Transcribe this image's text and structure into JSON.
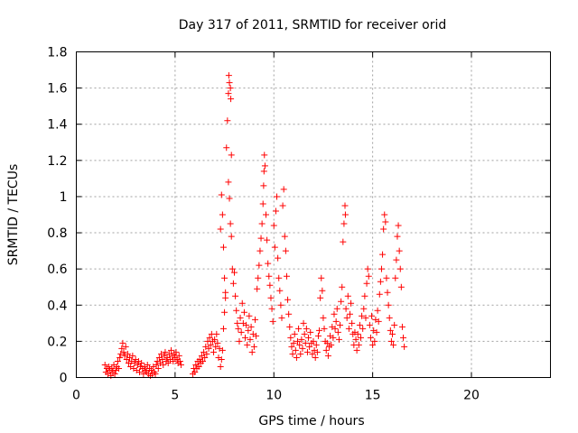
{
  "chart_data": {
    "type": "scatter",
    "title": "Day 317 of 2011, SRMTID for receiver orid",
    "xlabel": "GPS time / hours",
    "ylabel": "SRMTID / TECUs",
    "xlim": [
      0,
      24
    ],
    "ylim": [
      0,
      1.8
    ],
    "xticks": [
      0,
      5,
      10,
      15,
      20
    ],
    "xtick_labels": [
      "0",
      "5",
      "10",
      "15",
      "20"
    ],
    "yticks": [
      0,
      0.2,
      0.4,
      0.6,
      0.8,
      1,
      1.2,
      1.4,
      1.6,
      1.8
    ],
    "ytick_labels": [
      "0",
      "0.2",
      "0.4",
      "0.6",
      "0.8",
      "1",
      "1.2",
      "1.4",
      "1.6",
      "1.8"
    ],
    "grid": true,
    "marker": "plus",
    "color": "#ff0000",
    "series": [
      {
        "points": [
          [
            1.45,
            0.07
          ],
          [
            1.5,
            0.03
          ],
          [
            1.55,
            0.05
          ],
          [
            1.6,
            0.02
          ],
          [
            1.65,
            0.06
          ],
          [
            1.7,
            0.04
          ],
          [
            1.75,
            0.01
          ],
          [
            1.8,
            0.05
          ],
          [
            1.85,
            0.03
          ],
          [
            1.9,
            0.07
          ],
          [
            1.95,
            0.02
          ],
          [
            2.0,
            0.04
          ],
          [
            2.05,
            0.06
          ],
          [
            2.1,
            0.09
          ],
          [
            2.15,
            0.05
          ],
          [
            2.2,
            0.11
          ],
          [
            2.25,
            0.13
          ],
          [
            2.3,
            0.16
          ],
          [
            2.35,
            0.19
          ],
          [
            2.4,
            0.14
          ],
          [
            2.45,
            0.12
          ],
          [
            2.5,
            0.17
          ],
          [
            2.55,
            0.1
          ],
          [
            2.6,
            0.13
          ],
          [
            2.65,
            0.08
          ],
          [
            2.7,
            0.11
          ],
          [
            2.75,
            0.06
          ],
          [
            2.8,
            0.09
          ],
          [
            2.85,
            0.12
          ],
          [
            2.9,
            0.05
          ],
          [
            2.95,
            0.08
          ],
          [
            3.0,
            0.1
          ],
          [
            3.05,
            0.04
          ],
          [
            3.1,
            0.07
          ],
          [
            3.15,
            0.09
          ],
          [
            3.2,
            0.03
          ],
          [
            3.25,
            0.06
          ],
          [
            3.3,
            0.08
          ],
          [
            3.35,
            0.05
          ],
          [
            3.4,
            0.02
          ],
          [
            3.45,
            0.06
          ],
          [
            3.5,
            0.04
          ],
          [
            3.55,
            0.03
          ],
          [
            3.6,
            0.07
          ],
          [
            3.65,
            0.02
          ],
          [
            3.7,
            0.05
          ],
          [
            3.75,
            0.01
          ],
          [
            3.8,
            0.04
          ],
          [
            3.85,
            0.02
          ],
          [
            3.9,
            0.06
          ],
          [
            3.95,
            0.03
          ],
          [
            4.0,
            0.02
          ],
          [
            4.05,
            0.07
          ],
          [
            4.1,
            0.09
          ],
          [
            4.15,
            0.05
          ],
          [
            4.2,
            0.11
          ],
          [
            4.25,
            0.08
          ],
          [
            4.3,
            0.13
          ],
          [
            4.35,
            0.1
          ],
          [
            4.4,
            0.07
          ],
          [
            4.45,
            0.12
          ],
          [
            4.5,
            0.14
          ],
          [
            4.55,
            0.09
          ],
          [
            4.6,
            0.11
          ],
          [
            4.65,
            0.08
          ],
          [
            4.7,
            0.13
          ],
          [
            4.75,
            0.1
          ],
          [
            4.8,
            0.15
          ],
          [
            4.85,
            0.12
          ],
          [
            4.9,
            0.09
          ],
          [
            4.95,
            0.13
          ],
          [
            5.0,
            0.11
          ],
          [
            5.05,
            0.14
          ],
          [
            5.1,
            0.1
          ],
          [
            5.15,
            0.08
          ],
          [
            5.2,
            0.12
          ],
          [
            5.25,
            0.09
          ],
          [
            5.3,
            0.07
          ],
          [
            5.9,
            0.02
          ],
          [
            5.95,
            0.05
          ],
          [
            6.0,
            0.03
          ],
          [
            6.05,
            0.07
          ],
          [
            6.1,
            0.05
          ],
          [
            6.15,
            0.09
          ],
          [
            6.2,
            0.06
          ],
          [
            6.25,
            0.1
          ],
          [
            6.3,
            0.08
          ],
          [
            6.35,
            0.12
          ],
          [
            6.4,
            0.09
          ],
          [
            6.45,
            0.14
          ],
          [
            6.5,
            0.11
          ],
          [
            6.55,
            0.17
          ],
          [
            6.6,
            0.13
          ],
          [
            6.65,
            0.2
          ],
          [
            6.7,
            0.16
          ],
          [
            6.75,
            0.22
          ],
          [
            6.8,
            0.18
          ],
          [
            6.85,
            0.24
          ],
          [
            6.9,
            0.2
          ],
          [
            6.95,
            0.14
          ],
          [
            7.0,
            0.21
          ],
          [
            7.05,
            0.17
          ],
          [
            7.1,
            0.24
          ],
          [
            7.15,
            0.19
          ],
          [
            7.2,
            0.11
          ],
          [
            7.25,
            0.16
          ],
          [
            7.3,
            0.06
          ],
          [
            7.35,
            0.1
          ],
          [
            7.4,
            0.15
          ],
          [
            7.45,
            0.27
          ],
          [
            7.5,
            0.36
          ],
          [
            7.55,
            0.47
          ],
          [
            7.3,
            0.82
          ],
          [
            7.35,
            1.01
          ],
          [
            7.4,
            0.9
          ],
          [
            7.45,
            0.72
          ],
          [
            7.5,
            0.55
          ],
          [
            7.55,
            0.44
          ],
          [
            7.6,
            1.27
          ],
          [
            7.65,
            1.42
          ],
          [
            7.7,
            1.57
          ],
          [
            7.72,
            1.67
          ],
          [
            7.75,
            1.63
          ],
          [
            7.8,
            1.6
          ],
          [
            7.82,
            1.54
          ],
          [
            7.85,
            1.23
          ],
          [
            7.7,
            1.08
          ],
          [
            7.75,
            0.99
          ],
          [
            7.8,
            0.85
          ],
          [
            7.85,
            0.78
          ],
          [
            7.9,
            0.6
          ],
          [
            7.95,
            0.52
          ],
          [
            8.0,
            0.58
          ],
          [
            8.05,
            0.45
          ],
          [
            8.1,
            0.37
          ],
          [
            8.15,
            0.3
          ],
          [
            8.2,
            0.27
          ],
          [
            8.25,
            0.2
          ],
          [
            8.3,
            0.33
          ],
          [
            8.35,
            0.25
          ],
          [
            8.4,
            0.41
          ],
          [
            8.45,
            0.3
          ],
          [
            8.5,
            0.36
          ],
          [
            8.55,
            0.22
          ],
          [
            8.6,
            0.29
          ],
          [
            8.65,
            0.18
          ],
          [
            8.7,
            0.26
          ],
          [
            8.75,
            0.34
          ],
          [
            8.8,
            0.21
          ],
          [
            8.85,
            0.28
          ],
          [
            8.9,
            0.14
          ],
          [
            8.95,
            0.24
          ],
          [
            9.0,
            0.17
          ],
          [
            9.05,
            0.32
          ],
          [
            9.1,
            0.23
          ],
          [
            9.15,
            0.49
          ],
          [
            9.2,
            0.55
          ],
          [
            9.25,
            0.62
          ],
          [
            9.3,
            0.7
          ],
          [
            9.35,
            0.77
          ],
          [
            9.4,
            0.85
          ],
          [
            9.45,
            0.96
          ],
          [
            9.48,
            1.06
          ],
          [
            9.5,
            1.14
          ],
          [
            9.52,
            1.23
          ],
          [
            9.55,
            1.17
          ],
          [
            9.6,
            0.9
          ],
          [
            9.65,
            0.76
          ],
          [
            9.7,
            0.63
          ],
          [
            9.75,
            0.56
          ],
          [
            9.8,
            0.51
          ],
          [
            9.85,
            0.44
          ],
          [
            9.9,
            0.38
          ],
          [
            9.95,
            0.31
          ],
          [
            10.0,
            0.84
          ],
          [
            10.05,
            0.72
          ],
          [
            10.1,
            0.92
          ],
          [
            10.15,
            1.0
          ],
          [
            10.2,
            0.66
          ],
          [
            10.25,
            0.55
          ],
          [
            10.3,
            0.48
          ],
          [
            10.35,
            0.4
          ],
          [
            10.4,
            0.33
          ],
          [
            10.45,
            0.95
          ],
          [
            10.5,
            1.04
          ],
          [
            10.55,
            0.78
          ],
          [
            10.6,
            0.7
          ],
          [
            10.65,
            0.56
          ],
          [
            10.7,
            0.43
          ],
          [
            10.75,
            0.35
          ],
          [
            10.8,
            0.28
          ],
          [
            10.85,
            0.22
          ],
          [
            10.9,
            0.17
          ],
          [
            10.95,
            0.13
          ],
          [
            11.0,
            0.19
          ],
          [
            11.05,
            0.24
          ],
          [
            11.1,
            0.15
          ],
          [
            11.15,
            0.11
          ],
          [
            11.2,
            0.2
          ],
          [
            11.25,
            0.27
          ],
          [
            11.3,
            0.18
          ],
          [
            11.35,
            0.13
          ],
          [
            11.4,
            0.21
          ],
          [
            11.45,
            0.16
          ],
          [
            11.5,
            0.3
          ],
          [
            11.55,
            0.24
          ],
          [
            11.6,
            0.19
          ],
          [
            11.65,
            0.27
          ],
          [
            11.7,
            0.14
          ],
          [
            11.75,
            0.22
          ],
          [
            11.8,
            0.17
          ],
          [
            11.85,
            0.25
          ],
          [
            11.9,
            0.19
          ],
          [
            11.95,
            0.13
          ],
          [
            12.0,
            0.2
          ],
          [
            12.05,
            0.15
          ],
          [
            12.1,
            0.11
          ],
          [
            12.15,
            0.18
          ],
          [
            12.2,
            0.14
          ],
          [
            12.25,
            0.23
          ],
          [
            12.3,
            0.26
          ],
          [
            12.35,
            0.44
          ],
          [
            12.4,
            0.55
          ],
          [
            12.45,
            0.48
          ],
          [
            12.5,
            0.33
          ],
          [
            12.55,
            0.27
          ],
          [
            12.6,
            0.2
          ],
          [
            12.65,
            0.15
          ],
          [
            12.7,
            0.19
          ],
          [
            12.75,
            0.12
          ],
          [
            12.8,
            0.17
          ],
          [
            12.85,
            0.23
          ],
          [
            12.9,
            0.18
          ],
          [
            12.95,
            0.28
          ],
          [
            13.0,
            0.22
          ],
          [
            13.05,
            0.35
          ],
          [
            13.1,
            0.27
          ],
          [
            13.15,
            0.31
          ],
          [
            13.2,
            0.38
          ],
          [
            13.25,
            0.25
          ],
          [
            13.3,
            0.21
          ],
          [
            13.35,
            0.29
          ],
          [
            13.4,
            0.42
          ],
          [
            13.45,
            0.5
          ],
          [
            13.5,
            0.75
          ],
          [
            13.55,
            0.85
          ],
          [
            13.6,
            0.95
          ],
          [
            13.62,
            0.9
          ],
          [
            13.65,
            0.38
          ],
          [
            13.7,
            0.33
          ],
          [
            13.75,
            0.45
          ],
          [
            13.8,
            0.27
          ],
          [
            13.85,
            0.35
          ],
          [
            13.9,
            0.41
          ],
          [
            13.95,
            0.3
          ],
          [
            14.0,
            0.24
          ],
          [
            14.05,
            0.18
          ],
          [
            14.1,
            0.25
          ],
          [
            14.15,
            0.21
          ],
          [
            14.2,
            0.15
          ],
          [
            14.25,
            0.24
          ],
          [
            14.3,
            0.18
          ],
          [
            14.35,
            0.29
          ],
          [
            14.4,
            0.22
          ],
          [
            14.45,
            0.34
          ],
          [
            14.5,
            0.27
          ],
          [
            14.55,
            0.38
          ],
          [
            14.6,
            0.45
          ],
          [
            14.65,
            0.33
          ],
          [
            14.7,
            0.52
          ],
          [
            14.75,
            0.6
          ],
          [
            14.8,
            0.56
          ],
          [
            14.85,
            0.29
          ],
          [
            14.9,
            0.22
          ],
          [
            14.95,
            0.34
          ],
          [
            15.0,
            0.18
          ],
          [
            15.05,
            0.26
          ],
          [
            15.1,
            0.2
          ],
          [
            15.15,
            0.32
          ],
          [
            15.2,
            0.25
          ],
          [
            15.25,
            0.37
          ],
          [
            15.3,
            0.31
          ],
          [
            15.35,
            0.46
          ],
          [
            15.4,
            0.53
          ],
          [
            15.45,
            0.6
          ],
          [
            15.5,
            0.68
          ],
          [
            15.55,
            0.82
          ],
          [
            15.6,
            0.9
          ],
          [
            15.65,
            0.86
          ],
          [
            15.7,
            0.55
          ],
          [
            15.75,
            0.47
          ],
          [
            15.8,
            0.4
          ],
          [
            15.85,
            0.33
          ],
          [
            15.9,
            0.26
          ],
          [
            15.95,
            0.2
          ],
          [
            16.0,
            0.24
          ],
          [
            16.05,
            0.18
          ],
          [
            16.1,
            0.29
          ],
          [
            16.15,
            0.55
          ],
          [
            16.2,
            0.65
          ],
          [
            16.25,
            0.78
          ],
          [
            16.3,
            0.84
          ],
          [
            16.35,
            0.7
          ],
          [
            16.4,
            0.6
          ],
          [
            16.45,
            0.5
          ],
          [
            16.5,
            0.28
          ],
          [
            16.55,
            0.22
          ],
          [
            16.6,
            0.17
          ]
        ]
      }
    ]
  }
}
